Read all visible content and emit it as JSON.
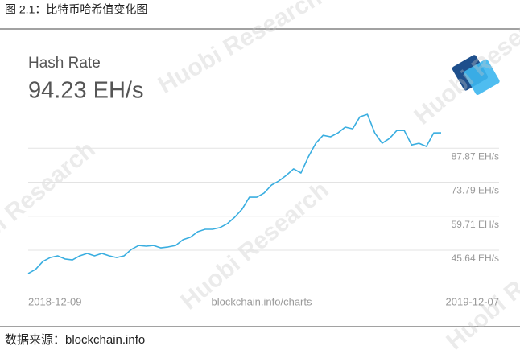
{
  "caption": "图 2.1：比特币哈希值变化图",
  "footer": "数据来源：blockchain.info",
  "watermark": "Huobi Research",
  "chart_data": {
    "type": "line",
    "title": "Hash Rate",
    "subtitle": "94.23 EH/s",
    "source": "blockchain.info/charts",
    "categories": [
      "2018-12-09",
      null,
      null,
      null,
      null,
      null,
      null,
      null,
      null,
      null,
      null,
      null,
      null,
      null,
      null,
      null,
      null,
      null,
      null,
      null,
      null,
      null,
      null,
      null,
      null,
      null,
      null,
      null,
      null,
      null,
      null,
      null,
      null,
      null,
      null,
      null,
      null,
      null,
      null,
      null,
      null,
      null,
      null,
      null,
      null,
      null,
      null,
      null,
      null,
      null,
      null,
      null,
      null,
      null,
      null,
      null,
      "2019-12-07"
    ],
    "series": [
      {
        "name": "Hash Rate",
        "color": "#3aaee0",
        "values": [
          36.0,
          37.7,
          41.0,
          42.6,
          43.3,
          42.0,
          41.6,
          43.3,
          44.3,
          43.3,
          44.3,
          43.3,
          42.6,
          43.3,
          46.0,
          47.6,
          47.3,
          47.6,
          46.6,
          47.0,
          47.6,
          50.0,
          51.0,
          53.3,
          54.3,
          54.3,
          55.0,
          56.6,
          59.3,
          62.6,
          67.6,
          67.6,
          69.3,
          72.6,
          74.3,
          76.6,
          79.3,
          77.6,
          84.3,
          89.9,
          93.2,
          92.6,
          94.2,
          96.6,
          95.9,
          100.9,
          101.9,
          94.2,
          89.9,
          91.9,
          95.2,
          95.2,
          89.2,
          89.9,
          88.6,
          94.2,
          94.23
        ]
      }
    ],
    "ylim": [
      34.3,
      102.6
    ],
    "yticks": [
      {
        "value": 45.64,
        "label": "45.64 EH/s"
      },
      {
        "value": 59.71,
        "label": "59.71 EH/s"
      },
      {
        "value": 73.79,
        "label": "73.79 EH/s"
      },
      {
        "value": 87.87,
        "label": "87.87 EH/s"
      }
    ],
    "grid": true
  }
}
